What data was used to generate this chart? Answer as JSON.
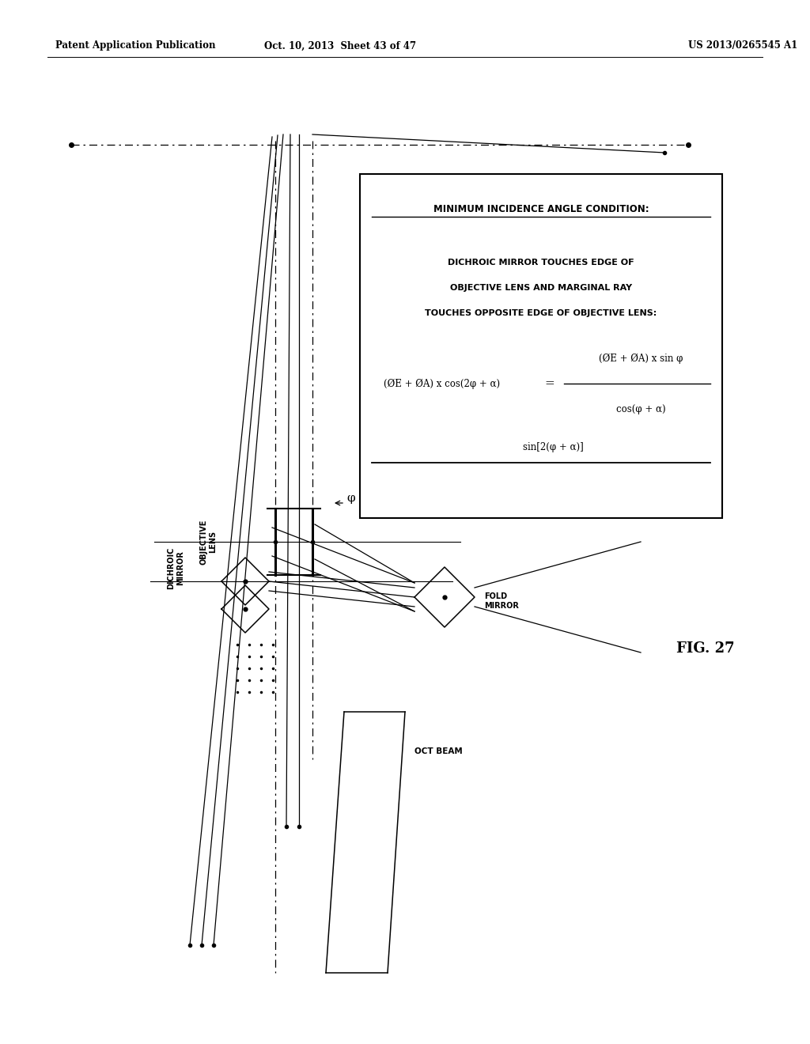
{
  "bg_color": "#ffffff",
  "header_left": "Patent Application Publication",
  "header_mid": "Oct. 10, 2013  Sheet 43 of 47",
  "header_right": "US 2013/0265545 A1",
  "fig_label": "FIG. 27",
  "box_title": "MINIMUM INCIDENCE ANGLE CONDITION:",
  "box_desc1": "DICHROIC MIRROR TOUCHES EDGE OF",
  "box_desc2": "OBJECTIVE LENS AND MARGINAL RAY",
  "box_desc3": "TOUCHES OPPOSITE EDGE OF OBJECTIVE LENS:",
  "eq_left": "(ØE + ØA) x cos(2φ + α)",
  "eq_equals": "=",
  "eq_num": "(ØE + ØA) x sin φ",
  "eq_den_top": "cos(φ + α)",
  "eq_den_bot": "sin[2(φ + α)]",
  "label_dichroic": "DICHROIC\nMIRROR",
  "label_objective": "OBJECTIVE\nLENS",
  "label_fold": "FOLD\nMIRROR",
  "label_oct": "OCT BEAM",
  "label_phi": "φ"
}
